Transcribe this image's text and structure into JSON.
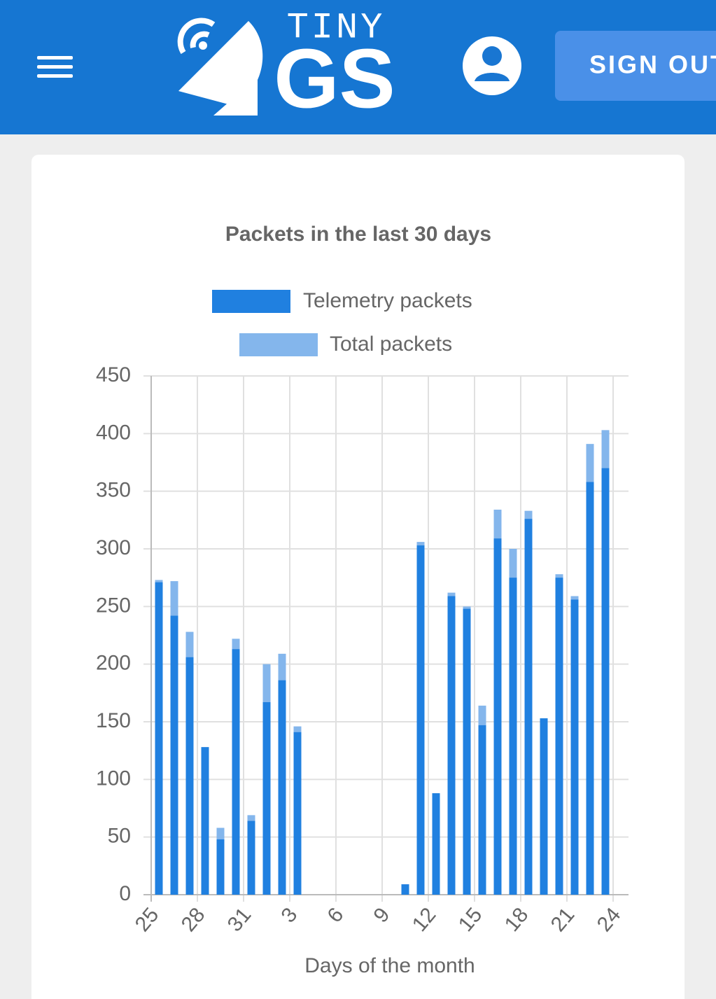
{
  "header": {
    "logo_top": "TINY",
    "logo_main": "GS",
    "button": "SIGN OUT"
  },
  "chart_data": {
    "type": "bar",
    "title": "Packets in the last 30 days",
    "x_label": "Days of the month",
    "categories": [
      "25",
      null,
      null,
      "28",
      null,
      null,
      "31",
      null,
      null,
      "3",
      null,
      null,
      "6",
      null,
      null,
      "9",
      null,
      null,
      "12",
      null,
      null,
      "15",
      null,
      null,
      "18",
      null,
      null,
      "21",
      null,
      null,
      "24"
    ],
    "series": [
      {
        "name": "Telemetry packets",
        "color": "#2080e0",
        "values": [
          271,
          242,
          206,
          128,
          48,
          213,
          64,
          167,
          186,
          141,
          0,
          0,
          0,
          0,
          0,
          0,
          9,
          303,
          88,
          259,
          248,
          147,
          309,
          275,
          326,
          153,
          275,
          256,
          358,
          370,
          null
        ]
      },
      {
        "name": "Total packets",
        "color": "#84b6ec",
        "values": [
          273,
          272,
          228,
          128,
          58,
          222,
          69,
          200,
          209,
          146,
          0,
          0,
          0,
          0,
          0,
          0,
          9,
          306,
          88,
          262,
          250,
          164,
          334,
          300,
          333,
          153,
          278,
          259,
          391,
          403,
          null
        ]
      }
    ],
    "ylim": [
      0,
      450
    ],
    "yticks": [
      0,
      50,
      100,
      150,
      200,
      250,
      300,
      350,
      400,
      450
    ],
    "grid": true,
    "legend": "top"
  }
}
